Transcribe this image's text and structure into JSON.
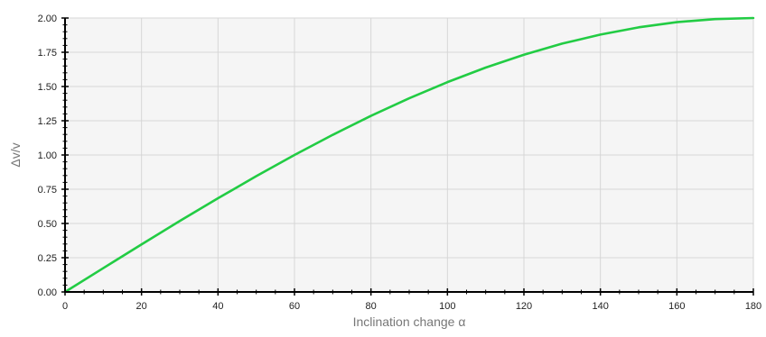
{
  "chart_data": {
    "type": "line",
    "title": "",
    "xlabel": "Inclination change α",
    "ylabel": "Δv/v",
    "xlim": [
      0,
      180
    ],
    "ylim": [
      0,
      2
    ],
    "xticks": [
      0,
      20,
      40,
      60,
      80,
      100,
      120,
      140,
      160,
      180
    ],
    "yticks": [
      0,
      0.25,
      0.5,
      0.75,
      1,
      1.25,
      1.5,
      1.75,
      2
    ],
    "xtick_labels": [
      "0",
      "20",
      "40",
      "60",
      "80",
      "100",
      "120",
      "140",
      "160",
      "180"
    ],
    "ytick_labels": [
      "0.00",
      "0.25",
      "0.50",
      "0.75",
      "1.00",
      "1.25",
      "1.50",
      "1.75",
      "2.00"
    ],
    "grid": true,
    "legend": "none",
    "series": [
      {
        "color": "#22cc44",
        "x": [
          0,
          10,
          20,
          30,
          40,
          50,
          60,
          70,
          80,
          90,
          100,
          110,
          120,
          130,
          140,
          150,
          160,
          170,
          180
        ],
        "values": [
          0,
          0.174,
          0.347,
          0.518,
          0.684,
          0.845,
          1.0,
          1.147,
          1.286,
          1.414,
          1.532,
          1.638,
          1.732,
          1.813,
          1.879,
          1.932,
          1.97,
          1.992,
          2.0
        ]
      }
    ]
  },
  "colors": {
    "plot_background": "#f5f5f5",
    "grid": "#d6d6d6",
    "axis": "#000000",
    "line": "#22cc44"
  }
}
